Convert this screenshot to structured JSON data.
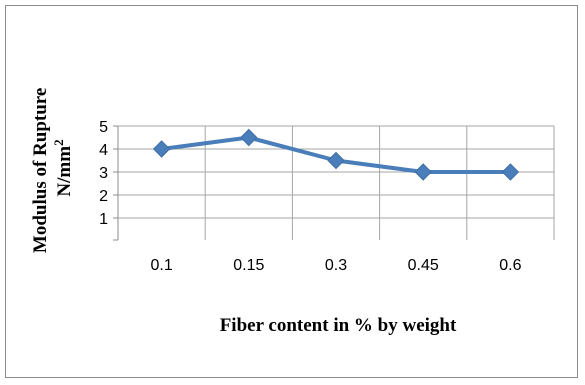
{
  "chart_data": {
    "type": "line",
    "categories": [
      "0.1",
      "0.15",
      "0.3",
      "0.45",
      "0.6"
    ],
    "series": [
      {
        "values": [
          4,
          4.5,
          3.5,
          3,
          3
        ],
        "color": "#4a7ebb",
        "marker": "diamond"
      }
    ],
    "xlabel": "Fiber content in % by weight",
    "ylabel_line1": "Modulus of Rupture",
    "ylabel_line2_base": "N/mm",
    "ylabel_line2_sup": "2",
    "y_ticks": [
      "1",
      "2",
      "3",
      "4",
      "5"
    ],
    "ylim": [
      1,
      5
    ],
    "grid": true,
    "legend": false
  }
}
